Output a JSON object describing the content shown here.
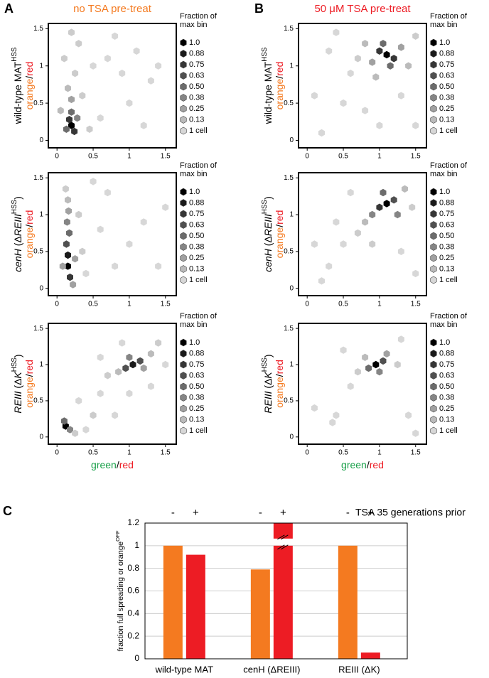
{
  "colorbar": {
    "title": "Fraction of max bin",
    "levels": [
      {
        "value": 1,
        "label": "1.0"
      },
      0.88,
      0.75,
      0.63,
      {
        "value": 0.5,
        "label": "0.50"
      },
      0.38,
      0.25,
      0.13
    ],
    "min_label": "1 cell"
  },
  "chart_data": [
    {
      "type": "hexbin",
      "panel": "A",
      "title": "no TSA pre-treat",
      "title_color": "#f47a20",
      "ylabel_parts": [
        {
          "text": "wild-type MAT"
        },
        {
          "text": "HSS",
          "sup": true
        }
      ],
      "ylabel2_parts": [
        {
          "text": "orange",
          "color": "#f47a20"
        },
        {
          "text": "/"
        },
        {
          "text": "red",
          "color": "#ed1c24"
        }
      ],
      "x": [
        0.2,
        0.17,
        0.24,
        0.2,
        0.13,
        0.28,
        0.2,
        0.15,
        0.25,
        0.1,
        0.3,
        0.2,
        0.35,
        0.5,
        0.7,
        0.9,
        1.1,
        1.3,
        1.0,
        0.6,
        1.2,
        1.4,
        0.8,
        0.45,
        0.05
      ],
      "y": [
        0.2,
        0.28,
        0.12,
        0.38,
        0.15,
        0.3,
        0.55,
        0.7,
        0.9,
        1.1,
        1.3,
        1.45,
        0.6,
        1.0,
        1.1,
        0.9,
        1.2,
        0.8,
        0.5,
        0.3,
        0.2,
        1.0,
        1.4,
        0.15,
        0.4
      ],
      "density": [
        1,
        0.75,
        0.75,
        0.5,
        0.5,
        0.38,
        0.25,
        0.13,
        0.05,
        0.05,
        0.05,
        0.05,
        0.05,
        0,
        0,
        0,
        0,
        0,
        0,
        0,
        0,
        0,
        0,
        0.05,
        0.13
      ],
      "xlim": [
        -0.12,
        1.65
      ],
      "ylim": [
        -0.1,
        1.57
      ],
      "xticks": [
        0,
        0.5,
        1,
        1.5
      ],
      "yticks": [
        0,
        0.5,
        1,
        1.5
      ]
    },
    {
      "type": "hexbin",
      "ylabel_parts": [
        {
          "text": "cenH",
          "italic": true
        },
        {
          "text": " (Δ"
        },
        {
          "text": "REIII",
          "italic": true
        },
        {
          "text": "HSS",
          "sup": true
        },
        {
          "text": ")"
        }
      ],
      "ylabel2_parts": [
        {
          "text": "orange",
          "color": "#f47a20"
        },
        {
          "text": "/"
        },
        {
          "text": "red",
          "color": "#ed1c24"
        }
      ],
      "x": [
        0.15,
        0.15,
        0.18,
        0.13,
        0.17,
        0.14,
        0.16,
        0.15,
        0.12,
        0.22,
        0.25,
        0.08,
        0.3,
        0.35,
        0.4,
        0.6,
        0.7,
        1.0,
        1.2,
        1.4,
        0.5,
        1.5,
        0.8
      ],
      "y": [
        0.3,
        0.45,
        0.15,
        0.6,
        0.75,
        0.9,
        1.05,
        1.2,
        1.35,
        0.05,
        0.4,
        0.3,
        1.0,
        0.5,
        0.2,
        0.8,
        1.3,
        0.6,
        0.9,
        0.3,
        1.45,
        1.1,
        0.3
      ],
      "density": [
        1,
        0.88,
        0.75,
        0.63,
        0.5,
        0.38,
        0.25,
        0.13,
        0.05,
        0.25,
        0.25,
        0.25,
        0.05,
        0.05,
        0,
        0,
        0,
        0,
        0,
        0,
        0,
        0,
        0
      ],
      "xlim": [
        -0.12,
        1.65
      ],
      "ylim": [
        -0.1,
        1.57
      ],
      "xticks": [
        0,
        0.5,
        1,
        1.5
      ],
      "yticks": [
        0,
        0.5,
        1,
        1.5
      ]
    },
    {
      "type": "hexbin",
      "ylabel_parts": [
        {
          "text": "REIII",
          "italic": true
        },
        {
          "text": " (Δ"
        },
        {
          "text": "K",
          "italic": true
        },
        {
          "text": "HSS",
          "sup": true
        },
        {
          "text": ")"
        }
      ],
      "ylabel2_parts": [
        {
          "text": "orange",
          "color": "#f47a20"
        },
        {
          "text": "/"
        },
        {
          "text": "red",
          "color": "#ed1c24"
        }
      ],
      "xlabel_parts": [
        {
          "text": "green",
          "color": "#1aa04a"
        },
        {
          "text": "/"
        },
        {
          "text": "red",
          "color": "#ed1c24"
        }
      ],
      "x": [
        0.12,
        0.1,
        0.18,
        1.05,
        0.95,
        1.15,
        1.0,
        1.2,
        0.85,
        1.3,
        0.7,
        1.4,
        0.5,
        0.3,
        0.6,
        0.8,
        1.0,
        1.3,
        0.4,
        0.25,
        1.5,
        0.9,
        0.6
      ],
      "y": [
        0.15,
        0.22,
        0.1,
        1.0,
        0.95,
        1.05,
        1.1,
        0.95,
        0.9,
        1.15,
        0.85,
        1.3,
        0.3,
        0.5,
        0.6,
        0.3,
        0.6,
        0.7,
        0.1,
        0.05,
        1.0,
        1.3,
        1.1
      ],
      "density": [
        1,
        0.5,
        0.38,
        0.88,
        0.63,
        0.63,
        0.38,
        0.25,
        0.13,
        0.13,
        0.05,
        0.05,
        0.05,
        0,
        0,
        0,
        0,
        0,
        0,
        0.05,
        0,
        0,
        0
      ],
      "xlim": [
        -0.12,
        1.65
      ],
      "ylim": [
        -0.1,
        1.57
      ],
      "xticks": [
        0,
        0.5,
        1,
        1.5
      ],
      "yticks": [
        0,
        0.5,
        1,
        1.5
      ]
    },
    {
      "type": "hexbin",
      "panel": "B",
      "title": "50 μM TSA pre-treat",
      "title_color": "#ed1c24",
      "ylabel_parts": [
        {
          "text": "wild-type MAT"
        },
        {
          "text": "HSS",
          "sup": true
        }
      ],
      "ylabel2_parts": [
        {
          "text": "orange",
          "color": "#f47a20"
        },
        {
          "text": "/"
        },
        {
          "text": "red",
          "color": "#ed1c24"
        }
      ],
      "x": [
        1.1,
        1.0,
        1.2,
        1.05,
        1.15,
        0.9,
        1.3,
        0.8,
        1.4,
        0.95,
        0.7,
        1.5,
        0.6,
        0.3,
        0.5,
        0.8,
        1.3,
        1.5,
        0.2,
        0.4,
        1.0,
        0.1
      ],
      "y": [
        1.15,
        1.2,
        1.1,
        1.3,
        1.0,
        1.05,
        1.25,
        1.3,
        1.0,
        0.85,
        1.1,
        1.4,
        0.9,
        1.2,
        0.5,
        0.4,
        0.6,
        0.2,
        0.1,
        1.45,
        0.2,
        0.6
      ],
      "density": [
        1,
        0.75,
        0.75,
        0.5,
        0.5,
        0.25,
        0.25,
        0.13,
        0.13,
        0.13,
        0.05,
        0.05,
        0,
        0,
        0,
        0,
        0,
        0,
        0,
        0,
        0,
        0
      ],
      "xlim": [
        -0.12,
        1.65
      ],
      "ylim": [
        -0.1,
        1.57
      ],
      "xticks": [
        0,
        0.5,
        1,
        1.5
      ],
      "yticks": [
        0,
        0.5,
        1,
        1.5
      ]
    },
    {
      "type": "hexbin",
      "ylabel_parts": [
        {
          "text": "cenH",
          "italic": true
        },
        {
          "text": " (Δ"
        },
        {
          "text": "REIII",
          "italic": true
        },
        {
          "text": "HSS",
          "sup": true
        },
        {
          "text": ")"
        }
      ],
      "ylabel2_parts": [
        {
          "text": "orange",
          "color": "#f47a20"
        },
        {
          "text": "/"
        },
        {
          "text": "red",
          "color": "#ed1c24"
        }
      ],
      "x": [
        1.1,
        1.0,
        1.2,
        1.05,
        0.9,
        1.25,
        0.8,
        1.35,
        0.7,
        0.9,
        1.45,
        0.5,
        0.3,
        0.2,
        0.6,
        1.3,
        1.5,
        0.4,
        0.1
      ],
      "y": [
        1.15,
        1.1,
        1.2,
        1.3,
        1.0,
        1.0,
        0.9,
        1.35,
        0.75,
        0.6,
        1.1,
        0.6,
        0.3,
        0.1,
        1.3,
        0.5,
        0.2,
        0.9,
        0.6
      ],
      "density": [
        1,
        0.75,
        0.63,
        0.5,
        0.38,
        0.38,
        0.13,
        0.13,
        0.05,
        0.05,
        0.05,
        0,
        0,
        0,
        0,
        0,
        0,
        0,
        0
      ],
      "xlim": [
        -0.12,
        1.65
      ],
      "ylim": [
        -0.1,
        1.57
      ],
      "xticks": [
        0,
        0.5,
        1,
        1.5
      ],
      "yticks": [
        0,
        0.5,
        1,
        1.5
      ]
    },
    {
      "type": "hexbin",
      "ylabel_parts": [
        {
          "text": "REIII",
          "italic": true
        },
        {
          "text": " (Δ"
        },
        {
          "text": "K",
          "italic": true
        },
        {
          "text": "HSS",
          "sup": true
        },
        {
          "text": ")"
        }
      ],
      "ylabel2_parts": [
        {
          "text": "orange",
          "color": "#f47a20"
        },
        {
          "text": "/"
        },
        {
          "text": "red",
          "color": "#ed1c24"
        }
      ],
      "xlabel_parts": [
        {
          "text": "green",
          "color": "#1aa04a"
        },
        {
          "text": "/"
        },
        {
          "text": "red",
          "color": "#ed1c24"
        }
      ],
      "x": [
        0.95,
        1.05,
        0.85,
        1.0,
        1.1,
        0.8,
        0.7,
        1.25,
        0.6,
        0.4,
        0.35,
        0.1,
        1.4,
        1.5,
        1.3,
        0.5
      ],
      "y": [
        1.0,
        1.05,
        0.95,
        0.9,
        1.15,
        1.1,
        0.9,
        1.0,
        0.7,
        0.3,
        0.2,
        0.4,
        0.3,
        0.05,
        1.35,
        1.2
      ],
      "density": [
        1,
        0.63,
        0.5,
        0.38,
        0.25,
        0.13,
        0.05,
        0.05,
        0,
        0,
        0,
        0,
        0,
        0,
        0,
        0
      ],
      "xlim": [
        -0.12,
        1.65
      ],
      "ylim": [
        -0.1,
        1.57
      ],
      "xticks": [
        0,
        0.5,
        1,
        1.5
      ],
      "yticks": [
        0,
        0.5,
        1,
        1.5
      ]
    },
    {
      "type": "bar",
      "panel": "C",
      "ylabel_parts": [
        {
          "text": "fraction full spreading or "
        },
        {
          "text": "orange"
        },
        {
          "text": "OFF",
          "sup": true
        }
      ],
      "legend_title": "TSA 35 generations prior",
      "categories": [
        "wild-type MAT",
        "cenH (ΔREIII)",
        "REIII (ΔK)"
      ],
      "series": [
        {
          "name": "-",
          "color": "#f47a20",
          "values": [
            1,
            0.79,
            1
          ]
        },
        {
          "name": "+",
          "color": "#ed1c24",
          "values": [
            0.92,
            1.2,
            0.055
          ],
          "broken": [
            false,
            true,
            false
          ]
        }
      ],
      "ylim": [
        0,
        1.2
      ],
      "yticks": [
        0,
        0.2,
        0.4,
        0.6,
        0.8,
        1,
        1.2
      ],
      "grid": true
    }
  ]
}
